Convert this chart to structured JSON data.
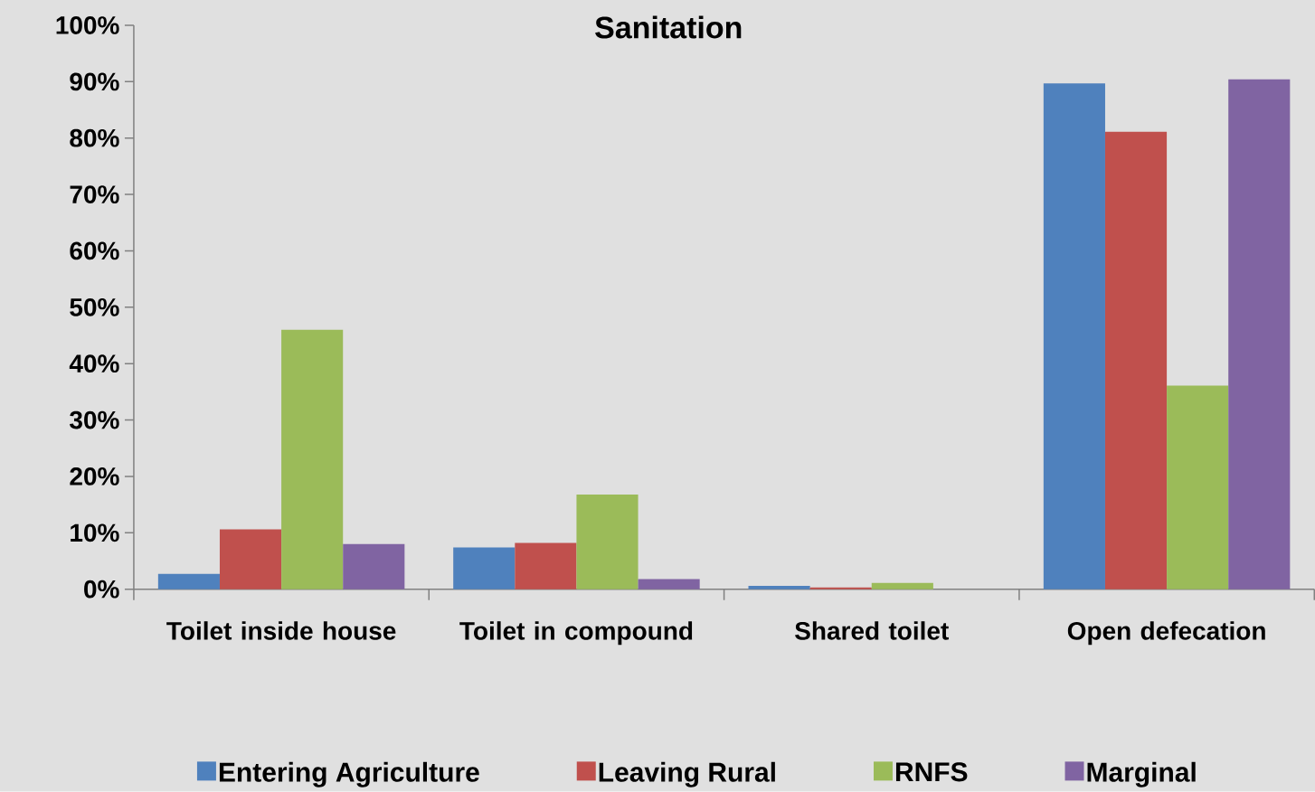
{
  "chart_data": {
    "type": "bar",
    "title": "Sanitation",
    "categories": [
      "Toilet inside house",
      "Toilet in compound",
      "Shared toilet",
      "Open defecation"
    ],
    "series": [
      {
        "name": "Entering Agriculture",
        "color": "#4f81bd",
        "values": [
          2.7,
          7.4,
          0.6,
          89.7
        ]
      },
      {
        "name": "Leaving Rural",
        "color": "#c0504d",
        "values": [
          10.6,
          8.2,
          0.3,
          81.1
        ]
      },
      {
        "name": "RNFS",
        "color": "#9bbb59",
        "values": [
          46.0,
          16.8,
          1.1,
          36.1
        ]
      },
      {
        "name": "Marginal",
        "color": "#8064a2",
        "values": [
          8.0,
          1.8,
          0.0,
          90.4
        ]
      }
    ],
    "ylim": [
      0,
      100
    ],
    "yticks": [
      {
        "value": 0,
        "label": "0%"
      },
      {
        "value": 10,
        "label": "10%"
      },
      {
        "value": 20,
        "label": "20%"
      },
      {
        "value": 30,
        "label": "30%"
      },
      {
        "value": 40,
        "label": "40%"
      },
      {
        "value": 50,
        "label": "50%"
      },
      {
        "value": 60,
        "label": "60%"
      },
      {
        "value": 70,
        "label": "70%"
      },
      {
        "value": 80,
        "label": "80%"
      },
      {
        "value": 90,
        "label": "90%"
      },
      {
        "value": 100,
        "label": "100%"
      }
    ],
    "grid": false,
    "legend": "bottom"
  }
}
